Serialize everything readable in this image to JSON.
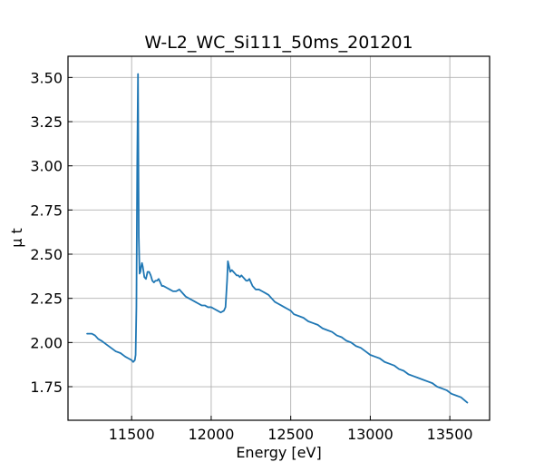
{
  "chart_data": {
    "type": "line",
    "title": "W-L2_WC_Si111_50ms_201201",
    "xlabel": "Energy [eV]",
    "ylabel": "μ t",
    "xlim": [
      11100,
      13750
    ],
    "ylim": [
      1.56,
      3.62
    ],
    "grid": true,
    "xticks": [
      11500,
      12000,
      12500,
      13000,
      13500
    ],
    "xtick_labels": [
      "11500",
      "12000",
      "12500",
      "13000",
      "13500"
    ],
    "yticks": [
      1.75,
      2.0,
      2.25,
      2.5,
      2.75,
      3.0,
      3.25,
      3.5
    ],
    "ytick_labels": [
      "1.75",
      "2.00",
      "2.25",
      "2.50",
      "2.75",
      "3.00",
      "3.25",
      "3.50"
    ],
    "series": [
      {
        "color": "#1f77b4",
        "x": [
          11220,
          11250,
          11270,
          11290,
          11310,
          11340,
          11370,
          11400,
          11430,
          11460,
          11480,
          11500,
          11510,
          11520,
          11525,
          11530,
          11535,
          11540,
          11545,
          11550,
          11555,
          11560,
          11565,
          11570,
          11575,
          11580,
          11590,
          11600,
          11610,
          11620,
          11630,
          11640,
          11650,
          11660,
          11670,
          11680,
          11690,
          11700,
          11720,
          11740,
          11760,
          11780,
          11800,
          11820,
          11840,
          11860,
          11880,
          11900,
          11920,
          11940,
          11960,
          11980,
          12000,
          12020,
          12040,
          12060,
          12080,
          12090,
          12100,
          12105,
          12110,
          12115,
          12120,
          12130,
          12140,
          12150,
          12160,
          12170,
          12180,
          12190,
          12200,
          12210,
          12220,
          12230,
          12240,
          12250,
          12260,
          12270,
          12280,
          12300,
          12320,
          12340,
          12360,
          12380,
          12400,
          12420,
          12440,
          12460,
          12480,
          12500,
          12520,
          12550,
          12580,
          12610,
          12640,
          12670,
          12700,
          12730,
          12760,
          12790,
          12820,
          12850,
          12880,
          12910,
          12940,
          12970,
          13000,
          13030,
          13060,
          13090,
          13120,
          13150,
          13180,
          13210,
          13240,
          13270,
          13300,
          13330,
          13360,
          13390,
          13420,
          13450,
          13480,
          13510,
          13540,
          13570,
          13610
        ],
        "y": [
          2.05,
          2.05,
          2.04,
          2.02,
          2.01,
          1.99,
          1.97,
          1.95,
          1.94,
          1.92,
          1.91,
          1.9,
          1.89,
          1.9,
          1.93,
          2.2,
          3.0,
          3.52,
          2.6,
          2.39,
          2.4,
          2.43,
          2.45,
          2.43,
          2.4,
          2.37,
          2.36,
          2.4,
          2.4,
          2.38,
          2.35,
          2.34,
          2.35,
          2.35,
          2.36,
          2.34,
          2.32,
          2.32,
          2.31,
          2.3,
          2.29,
          2.29,
          2.3,
          2.28,
          2.26,
          2.25,
          2.24,
          2.23,
          2.22,
          2.21,
          2.21,
          2.2,
          2.2,
          2.19,
          2.18,
          2.17,
          2.18,
          2.2,
          2.35,
          2.46,
          2.44,
          2.42,
          2.4,
          2.41,
          2.4,
          2.39,
          2.38,
          2.38,
          2.37,
          2.38,
          2.37,
          2.36,
          2.35,
          2.35,
          2.36,
          2.34,
          2.32,
          2.31,
          2.3,
          2.3,
          2.29,
          2.28,
          2.27,
          2.25,
          2.23,
          2.22,
          2.21,
          2.2,
          2.19,
          2.18,
          2.16,
          2.15,
          2.14,
          2.12,
          2.11,
          2.1,
          2.08,
          2.07,
          2.06,
          2.04,
          2.03,
          2.01,
          2.0,
          1.98,
          1.97,
          1.95,
          1.93,
          1.92,
          1.91,
          1.89,
          1.88,
          1.87,
          1.85,
          1.84,
          1.82,
          1.81,
          1.8,
          1.79,
          1.78,
          1.77,
          1.75,
          1.74,
          1.73,
          1.71,
          1.7,
          1.69,
          1.66
        ]
      }
    ]
  }
}
